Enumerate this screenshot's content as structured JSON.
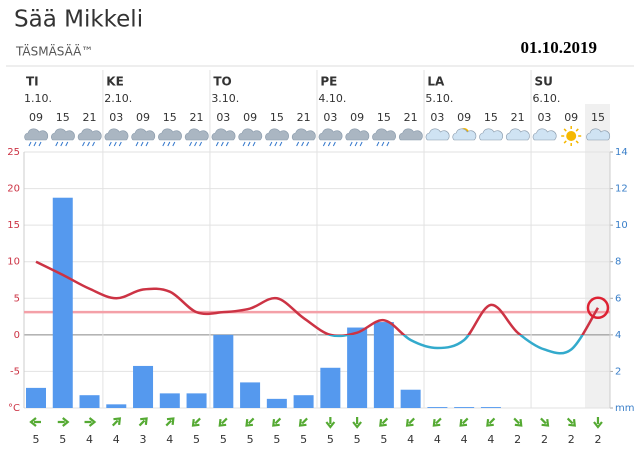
{
  "title": "Sää Mikkeli",
  "subtitle": "TÄSMÄSÄÄ™",
  "date": "01.10.2019",
  "chart_data": {
    "type": "weather",
    "days": [
      {
        "name": "TI",
        "date": "1.10."
      },
      {
        "name": "KE",
        "date": "2.10."
      },
      {
        "name": "TO",
        "date": "3.10."
      },
      {
        "name": "PE",
        "date": "4.10."
      },
      {
        "name": "LA",
        "date": "5.10."
      },
      {
        "name": "SU",
        "date": "6.10."
      }
    ],
    "categories": [
      "09",
      "15",
      "21",
      "03",
      "09",
      "15",
      "21",
      "03",
      "09",
      "15",
      "21",
      "03",
      "09",
      "15",
      "21",
      "03",
      "09",
      "15",
      "21",
      "03",
      "09",
      "15"
    ],
    "series": [
      {
        "name": "temperature",
        "color": "#cc3344",
        "negative_color": "#33aacc",
        "values": [
          10,
          8.2,
          6.3,
          5,
          6.2,
          5.9,
          3.1,
          3.1,
          3.6,
          5,
          2.3,
          0,
          0.3,
          2,
          -0.7,
          -1.8,
          -0.7,
          4.1,
          0.3,
          -2,
          -2,
          3.7
        ]
      },
      {
        "name": "precipitation",
        "color": "#5599ee",
        "axis": "y2",
        "values": [
          1.1,
          11.5,
          0.7,
          0.2,
          2.3,
          0.8,
          0.8,
          4.0,
          1.4,
          0.5,
          0.7,
          2.2,
          4.4,
          4.7,
          1.0,
          0.05,
          0.05,
          0.05,
          0,
          0,
          0,
          0
        ]
      }
    ],
    "reference_line": 3.1,
    "wind_speed": [
      5,
      5,
      4,
      4,
      3,
      4,
      5,
      5,
      5,
      5,
      5,
      5,
      5,
      5,
      4,
      4,
      4,
      4,
      2,
      2,
      2,
      2
    ],
    "wind_direction": [
      270,
      90,
      90,
      45,
      45,
      45,
      225,
      225,
      225,
      225,
      225,
      180,
      180,
      225,
      225,
      225,
      225,
      225,
      135,
      135,
      135,
      180
    ],
    "ylim": [
      -10,
      25
    ],
    "yticks": [
      {
        "value": -10,
        "label": "°C"
      },
      -5,
      0,
      5,
      10,
      15,
      20,
      25
    ],
    "y2lim": [
      0,
      14
    ],
    "y2ticks": [
      {
        "value": 0,
        "label": "mm"
      },
      2,
      4,
      6,
      8,
      10,
      12,
      14
    ],
    "grid": true
  }
}
